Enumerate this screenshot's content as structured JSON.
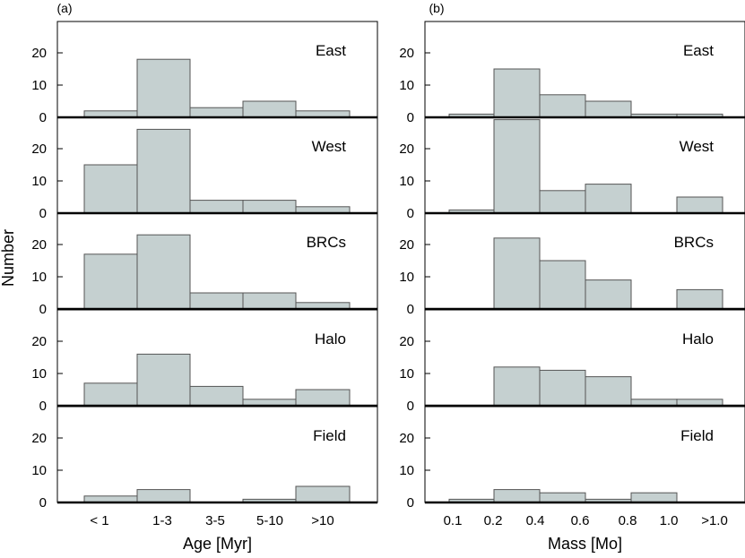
{
  "chart_data": [
    {
      "type": "bar",
      "panel_label": "(a)",
      "xlabel": "Age [Myr]",
      "ylabel": "Number",
      "ylim": [
        0,
        30
      ],
      "yticks": [
        "0",
        "10",
        "20"
      ],
      "tick_labels": [
        "< 1",
        "1-3",
        "3-5",
        "5-10",
        ">10"
      ],
      "categories": [
        "< 1",
        "1-3",
        "3-5",
        "5-10",
        ">10"
      ],
      "series": [
        {
          "name": "East",
          "values": [
            2,
            18,
            3,
            5,
            2
          ]
        },
        {
          "name": "West",
          "values": [
            15,
            26,
            4,
            4,
            2
          ]
        },
        {
          "name": "BRCs",
          "values": [
            17,
            23,
            5,
            5,
            2
          ]
        },
        {
          "name": "Halo",
          "values": [
            7,
            16,
            6,
            2,
            5
          ]
        },
        {
          "name": "Field",
          "values": [
            2,
            4,
            0,
            1,
            5
          ]
        }
      ]
    },
    {
      "type": "bar",
      "panel_label": "(b)",
      "xlabel": "Mass [Mo]",
      "ylabel": "",
      "ylim": [
        0,
        30
      ],
      "yticks": [
        "0",
        "10",
        "20"
      ],
      "tick_labels": [
        "0.1",
        "0.2",
        "0.4",
        "0.6",
        "0.8",
        "1.0",
        ">1.0"
      ],
      "categories": [
        "0.1-0.2",
        "0.2-0.4",
        "0.4-0.6",
        "0.6-0.8",
        "0.8-1.0",
        ">1.0"
      ],
      "series": [
        {
          "name": "East",
          "values": [
            1,
            15,
            7,
            5,
            1,
            1
          ]
        },
        {
          "name": "West",
          "values": [
            1,
            29,
            7,
            9,
            0,
            5
          ]
        },
        {
          "name": "BRCs",
          "values": [
            0,
            22,
            15,
            9,
            0,
            6
          ]
        },
        {
          "name": "Halo",
          "values": [
            0,
            12,
            11,
            9,
            2,
            2
          ]
        },
        {
          "name": "Field",
          "values": [
            1,
            4,
            3,
            1,
            3,
            0
          ]
        }
      ]
    }
  ]
}
